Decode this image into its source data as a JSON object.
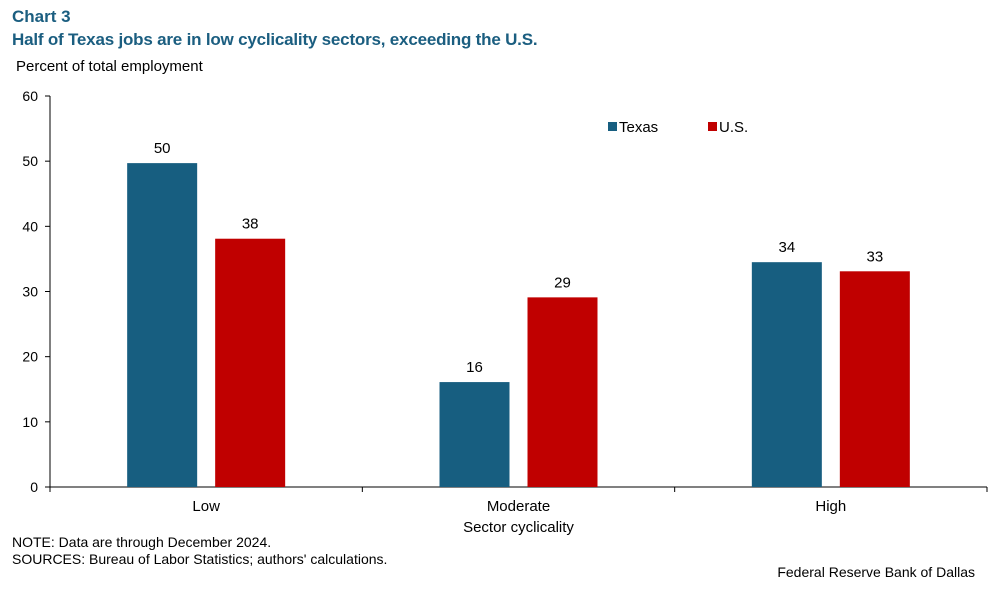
{
  "header": {
    "chart_number": "Chart 3",
    "title": "Half of Texas jobs are in low cyclicality sectors, exceeding the U.S."
  },
  "chart_data": {
    "type": "bar",
    "title": "Half of Texas jobs are in low cyclicality sectors, exceeding the U.S.",
    "ylabel": "Percent of total employment",
    "xlabel": "Sector cyclicality",
    "categories": [
      "Low",
      "Moderate",
      "High"
    ],
    "series": [
      {
        "name": "Texas",
        "color": "#175e80",
        "values": [
          49.7,
          16.1,
          34.5
        ],
        "labels": [
          "50",
          "16",
          "34"
        ]
      },
      {
        "name": "U.S.",
        "color": "#c00000",
        "values": [
          38.1,
          29.1,
          33.1
        ],
        "labels": [
          "38",
          "29",
          "33"
        ]
      }
    ],
    "ylim": [
      0,
      60
    ],
    "yticks": [
      0,
      10,
      20,
      30,
      40,
      50,
      60
    ],
    "grid": false,
    "legend_position": "top-right"
  },
  "footer": {
    "note": "NOTE: Data are through December 2024.",
    "sources": "SOURCES: Bureau of Labor Statistics; authors' calculations.",
    "credit": "Federal Reserve Bank of Dallas"
  }
}
